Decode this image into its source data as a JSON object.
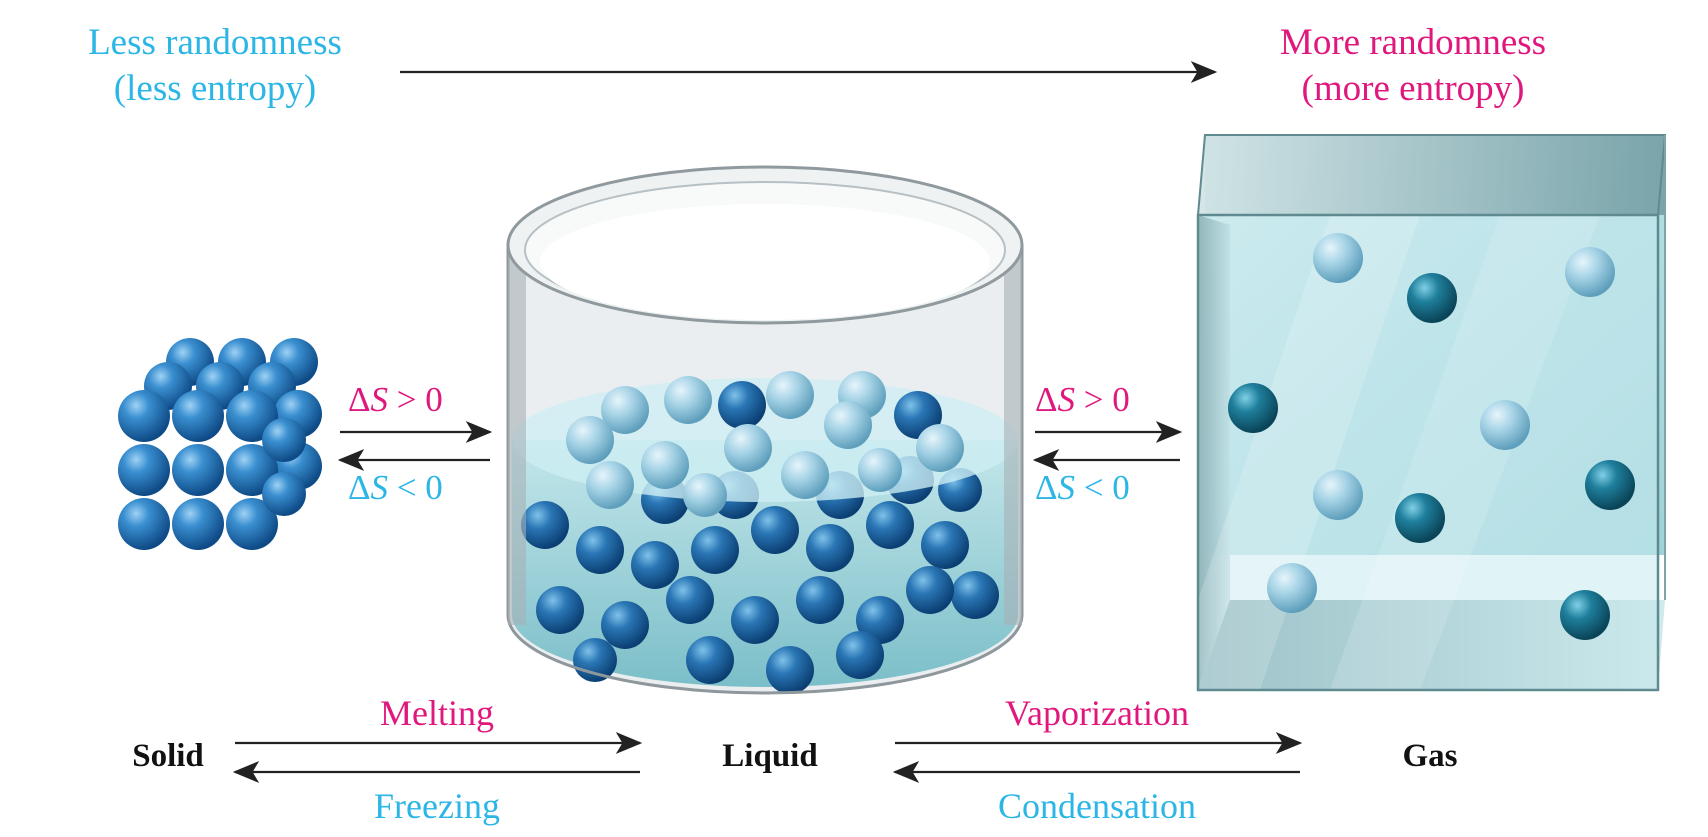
{
  "header": {
    "left_line1": "Less randomness",
    "left_line2": "(less entropy)",
    "right_line1": "More randomness",
    "right_line2": "(more entropy)"
  },
  "left_arrows": {
    "forward_delta": "Δ",
    "forward_symbol": "S",
    "forward_rest": " > 0",
    "reverse_delta": "Δ",
    "reverse_symbol": "S",
    "reverse_rest": " < 0"
  },
  "right_arrows": {
    "forward_delta": "Δ",
    "forward_symbol": "S",
    "forward_rest": " > 0",
    "reverse_delta": "Δ",
    "reverse_symbol": "S",
    "reverse_rest": " < 0"
  },
  "states": {
    "solid": "Solid",
    "liquid": "Liquid",
    "gas": "Gas"
  },
  "transitions": {
    "melting": "Melting",
    "freezing": "Freezing",
    "vaporization": "Vaporization",
    "condensation": "Condensation"
  },
  "colors": {
    "less_entropy": "#2bb6e6",
    "more_entropy": "#e0187e",
    "molecule": "#1d6fb0"
  }
}
